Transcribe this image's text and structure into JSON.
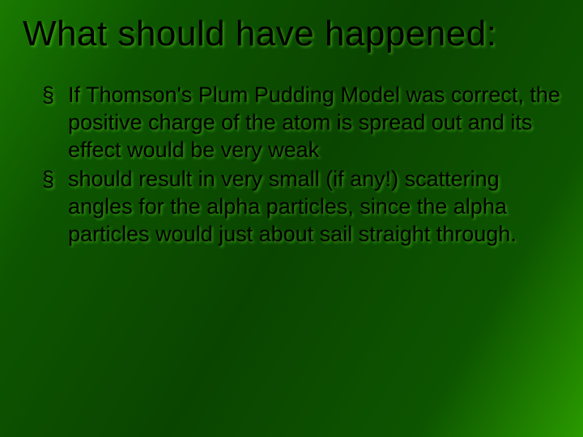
{
  "slide": {
    "title": "What should have happened:",
    "bullets": [
      "If Thomson's Plum Pudding Model was correct, the positive charge of the atom is spread out and its effect would be very weak",
      " should result in very small (if any!) scattering angles for the alpha particles, since the alpha particles would just about sail straight through."
    ],
    "background_gradient": [
      "#1a7a00",
      "#0d5500",
      "#0a4500",
      "#0d5500",
      "#2a9a00"
    ],
    "title_color": "#000000",
    "body_color": "#000000",
    "title_fontsize": 44,
    "body_fontsize": 27,
    "title_font": "Impact",
    "body_font": "Arial",
    "shadow_color": "rgba(100,220,40,0.5)",
    "bullet_glyph": "§"
  }
}
